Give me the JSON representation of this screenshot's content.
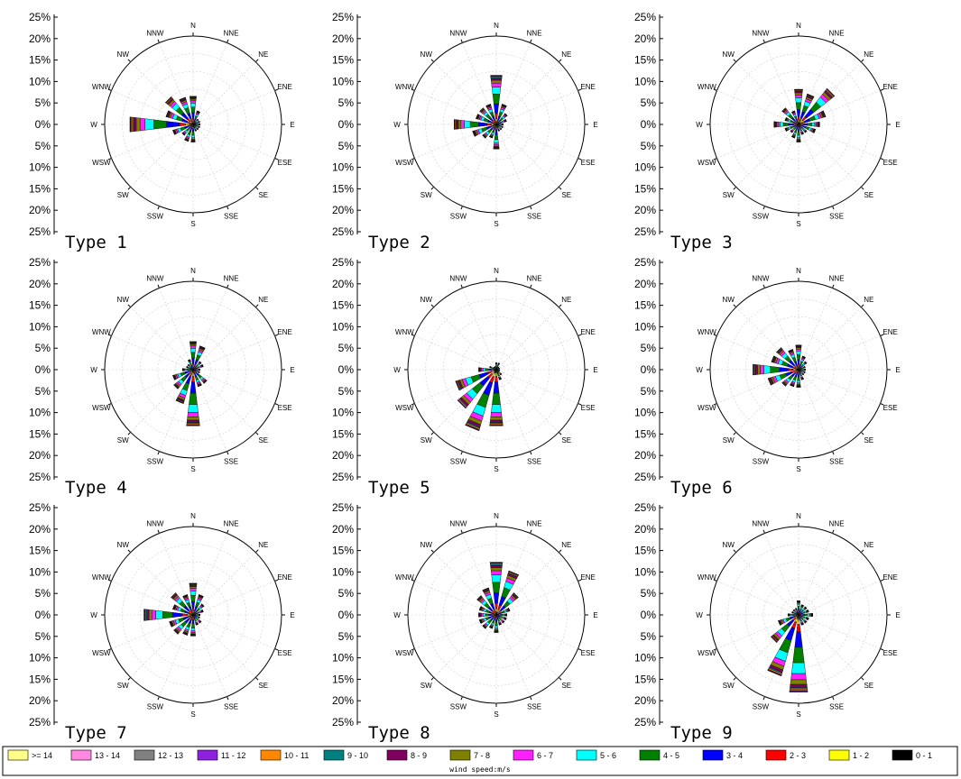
{
  "chart_data": {
    "type": "windrose",
    "directions": [
      "N",
      "NNE",
      "NE",
      "ENE",
      "E",
      "ESE",
      "SE",
      "SSE",
      "S",
      "SSW",
      "SW",
      "WSW",
      "W",
      "WNW",
      "NW",
      "NNW"
    ],
    "y_tick_labels": [
      "25%",
      "20%",
      "15%",
      "10%",
      "5%",
      "0%",
      "5%",
      "10%",
      "15%",
      "20%",
      "25%"
    ],
    "rmax": 25,
    "ring_values": [
      5,
      10,
      15,
      20,
      25
    ],
    "legend": {
      "title": "wind speed:m/s",
      "items": [
        {
          "label": ">= 14",
          "color": "#ffff88"
        },
        {
          "label": "13 - 14",
          "color": "#ff88e0"
        },
        {
          "label": "12 - 13",
          "color": "#808080"
        },
        {
          "label": "11 - 12",
          "color": "#9020e0"
        },
        {
          "label": "10 - 11",
          "color": "#ff8800"
        },
        {
          "label": "9 - 10",
          "color": "#008080"
        },
        {
          "label": "8 - 9",
          "color": "#800060"
        },
        {
          "label": "7 - 8",
          "color": "#808000"
        },
        {
          "label": "6 - 7",
          "color": "#ff20ff"
        },
        {
          "label": "5 - 6",
          "color": "#00ffff"
        },
        {
          "label": "4 - 5",
          "color": "#008000"
        },
        {
          "label": "3 - 4",
          "color": "#0000ff"
        },
        {
          "label": "2 - 3",
          "color": "#ff0000"
        },
        {
          "label": "1 - 2",
          "color": "#ffff00"
        },
        {
          "label": "0 - 1",
          "color": "#000000"
        }
      ]
    },
    "panels": [
      {
        "title": "Type 1",
        "totals": [
          8,
          4,
          2,
          2,
          2,
          2,
          2,
          2,
          5,
          5,
          4,
          6,
          18,
          8,
          10,
          8
        ]
      },
      {
        "title": "Type 2",
        "totals": [
          14,
          6,
          4,
          3,
          2,
          2,
          2,
          2,
          7,
          4,
          5,
          7,
          12,
          6,
          6,
          6
        ]
      },
      {
        "title": "Type 3",
        "totals": [
          10,
          9,
          13,
          8,
          6,
          5,
          3,
          3,
          5,
          4,
          3,
          4,
          7,
          4,
          6,
          4
        ]
      },
      {
        "title": "Type 4",
        "totals": [
          8,
          7,
          3,
          3,
          2,
          2,
          5,
          5,
          16,
          10,
          7,
          6,
          3,
          2,
          2,
          3
        ]
      },
      {
        "title": "Type 5",
        "totals": [
          2,
          2,
          1,
          1,
          1,
          1,
          2,
          3,
          16,
          18,
          14,
          12,
          5,
          2,
          1,
          1
        ]
      },
      {
        "title": "Type 6",
        "totals": [
          7,
          4,
          3,
          2,
          2,
          2,
          2,
          3,
          5,
          5,
          6,
          9,
          13,
          8,
          8,
          6
        ]
      },
      {
        "title": "Type 7",
        "totals": [
          9,
          6,
          4,
          3,
          2,
          2,
          3,
          3,
          6,
          6,
          7,
          7,
          14,
          6,
          8,
          6
        ]
      },
      {
        "title": "Type 8",
        "totals": [
          15,
          13,
          8,
          4,
          3,
          3,
          3,
          3,
          5,
          4,
          5,
          5,
          5,
          5,
          7,
          8
        ]
      },
      {
        "title": "Type 9",
        "totals": [
          4,
          3,
          3,
          3,
          4,
          3,
          3,
          3,
          22,
          18,
          10,
          6,
          3,
          2,
          2,
          2
        ]
      }
    ]
  }
}
